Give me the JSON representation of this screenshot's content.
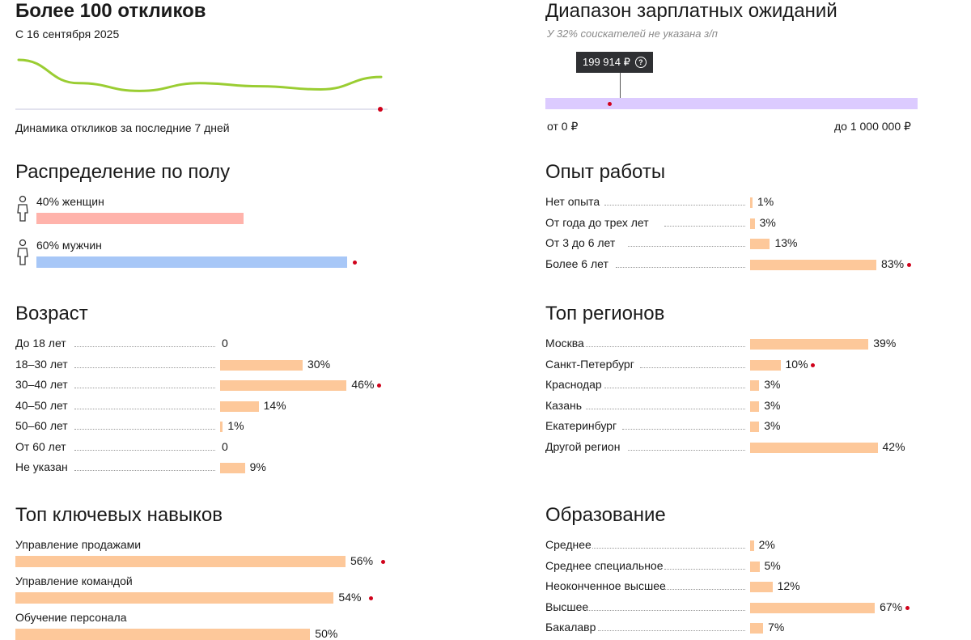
{
  "responses": {
    "title": "Более 100 откликов",
    "since": "С 16 сентября 2025",
    "caption": "Динамика откликов за последние 7 дней",
    "colors": {
      "line": "#9acd32",
      "axis": "#d8d8e8",
      "marker": "#d0021b"
    }
  },
  "salary": {
    "title": "Диапазон зарплатных ожиданий",
    "note": "У 32% соискателей не указана з/п",
    "tooltip": "199 914 ₽",
    "help_icon": "question-circle-icon",
    "min_label": "от 0 ₽",
    "max_label": "до 1 000 000 ₽",
    "range": [
      0,
      1000000
    ],
    "value": 199914,
    "colors": {
      "track": "#dccbff",
      "tooltip_bg": "#2f3033"
    }
  },
  "gender": {
    "title": "Распределение по полу",
    "icon": "person-icon",
    "rows": [
      {
        "label": "40% женщин",
        "value": 40,
        "color": "#ffb3ab",
        "marker": false
      },
      {
        "label": "60% мужчин",
        "value": 60,
        "color": "#a7c7f7",
        "marker": true
      }
    ]
  },
  "experience": {
    "title": "Опыт работы",
    "rows": [
      {
        "label": "Нет опыта",
        "value": 1,
        "text": "1%",
        "marker": false
      },
      {
        "label": "От года до трех лет",
        "value": 3,
        "text": "3%",
        "marker": false
      },
      {
        "label": "От 3 до 6 лет",
        "value": 13,
        "text": "13%",
        "marker": false
      },
      {
        "label": "Более 6 лет",
        "value": 83,
        "text": "83%",
        "marker": true
      }
    ]
  },
  "age": {
    "title": "Возраст",
    "rows": [
      {
        "label": "До 18 лет",
        "value": 0,
        "text": "0",
        "marker": false
      },
      {
        "label": "18–30 лет",
        "value": 30,
        "text": "30%",
        "marker": false
      },
      {
        "label": "30–40 лет",
        "value": 46,
        "text": "46%",
        "marker": true
      },
      {
        "label": "40–50 лет",
        "value": 14,
        "text": "14%",
        "marker": false
      },
      {
        "label": "50–60 лет",
        "value": 1,
        "text": "1%",
        "marker": false
      },
      {
        "label": "От 60 лет",
        "value": 0,
        "text": "0",
        "marker": false
      },
      {
        "label": "Не указан",
        "value": 9,
        "text": "9%",
        "marker": false
      }
    ]
  },
  "regions": {
    "title": "Топ регионов",
    "rows": [
      {
        "label": "Москва",
        "value": 39,
        "text": "39%",
        "marker": false
      },
      {
        "label": "Санкт-Петербург",
        "value": 10,
        "text": "10%",
        "marker": true
      },
      {
        "label": "Краснодар",
        "value": 3,
        "text": "3%",
        "marker": false
      },
      {
        "label": "Казань",
        "value": 3,
        "text": "3%",
        "marker": false
      },
      {
        "label": "Екатеринбург",
        "value": 3,
        "text": "3%",
        "marker": false
      },
      {
        "label": "Другой регион",
        "value": 42,
        "text": "42%",
        "marker": false
      }
    ]
  },
  "skills": {
    "title": "Топ ключевых навыков",
    "rows": [
      {
        "label": "Управление продажами",
        "value": 56,
        "text": "56%",
        "marker": true
      },
      {
        "label": "Управление командой",
        "value": 54,
        "text": "54%",
        "marker": true
      },
      {
        "label": "Обучение персонала",
        "value": 50,
        "text": "50%",
        "marker": false
      }
    ]
  },
  "education": {
    "title": "Образование",
    "rows": [
      {
        "label": "Среднее",
        "value": 2,
        "text": "2%",
        "marker": false
      },
      {
        "label": "Среднее специальное",
        "value": 5,
        "text": "5%",
        "marker": false
      },
      {
        "label": "Неоконченное высшее",
        "value": 12,
        "text": "12%",
        "marker": false
      },
      {
        "label": "Высшее",
        "value": 67,
        "text": "67%",
        "marker": true
      },
      {
        "label": "Бакалавр",
        "value": 7,
        "text": "7%",
        "marker": false
      }
    ]
  },
  "chart_data": [
    {
      "type": "line",
      "title": "Динамика откликов за последние 7 дней",
      "note": "values approximate, no axis shown",
      "x": [
        1,
        2,
        3,
        4,
        5,
        6,
        7
      ],
      "values": [
        50,
        20,
        10,
        20,
        16,
        12,
        28
      ]
    },
    {
      "type": "bar",
      "title": "Распределение по полу",
      "categories": [
        "женщин",
        "мужчин"
      ],
      "values": [
        40,
        60
      ]
    },
    {
      "type": "bar",
      "title": "Опыт работы",
      "categories": [
        "Нет опыта",
        "От года до трех лет",
        "От 3 до 6 лет",
        "Более 6 лет"
      ],
      "values": [
        1,
        3,
        13,
        83
      ]
    },
    {
      "type": "bar",
      "title": "Возраст",
      "categories": [
        "До 18 лет",
        "18–30 лет",
        "30–40 лет",
        "40–50 лет",
        "50–60 лет",
        "От 60 лет",
        "Не указан"
      ],
      "values": [
        0,
        30,
        46,
        14,
        1,
        0,
        9
      ]
    },
    {
      "type": "bar",
      "title": "Топ регионов",
      "categories": [
        "Москва",
        "Санкт-Петербург",
        "Краснодар",
        "Казань",
        "Екатеринбург",
        "Другой регион"
      ],
      "values": [
        39,
        10,
        3,
        3,
        3,
        42
      ]
    },
    {
      "type": "bar",
      "title": "Топ ключевых навыков",
      "categories": [
        "Управление продажами",
        "Управление командой",
        "Обучение персонала"
      ],
      "values": [
        56,
        54,
        50
      ]
    },
    {
      "type": "bar",
      "title": "Образование",
      "categories": [
        "Среднее",
        "Среднее специальное",
        "Неоконченное высшее",
        "Высшее",
        "Бакалавр"
      ],
      "values": [
        2,
        5,
        12,
        67,
        7
      ]
    }
  ]
}
